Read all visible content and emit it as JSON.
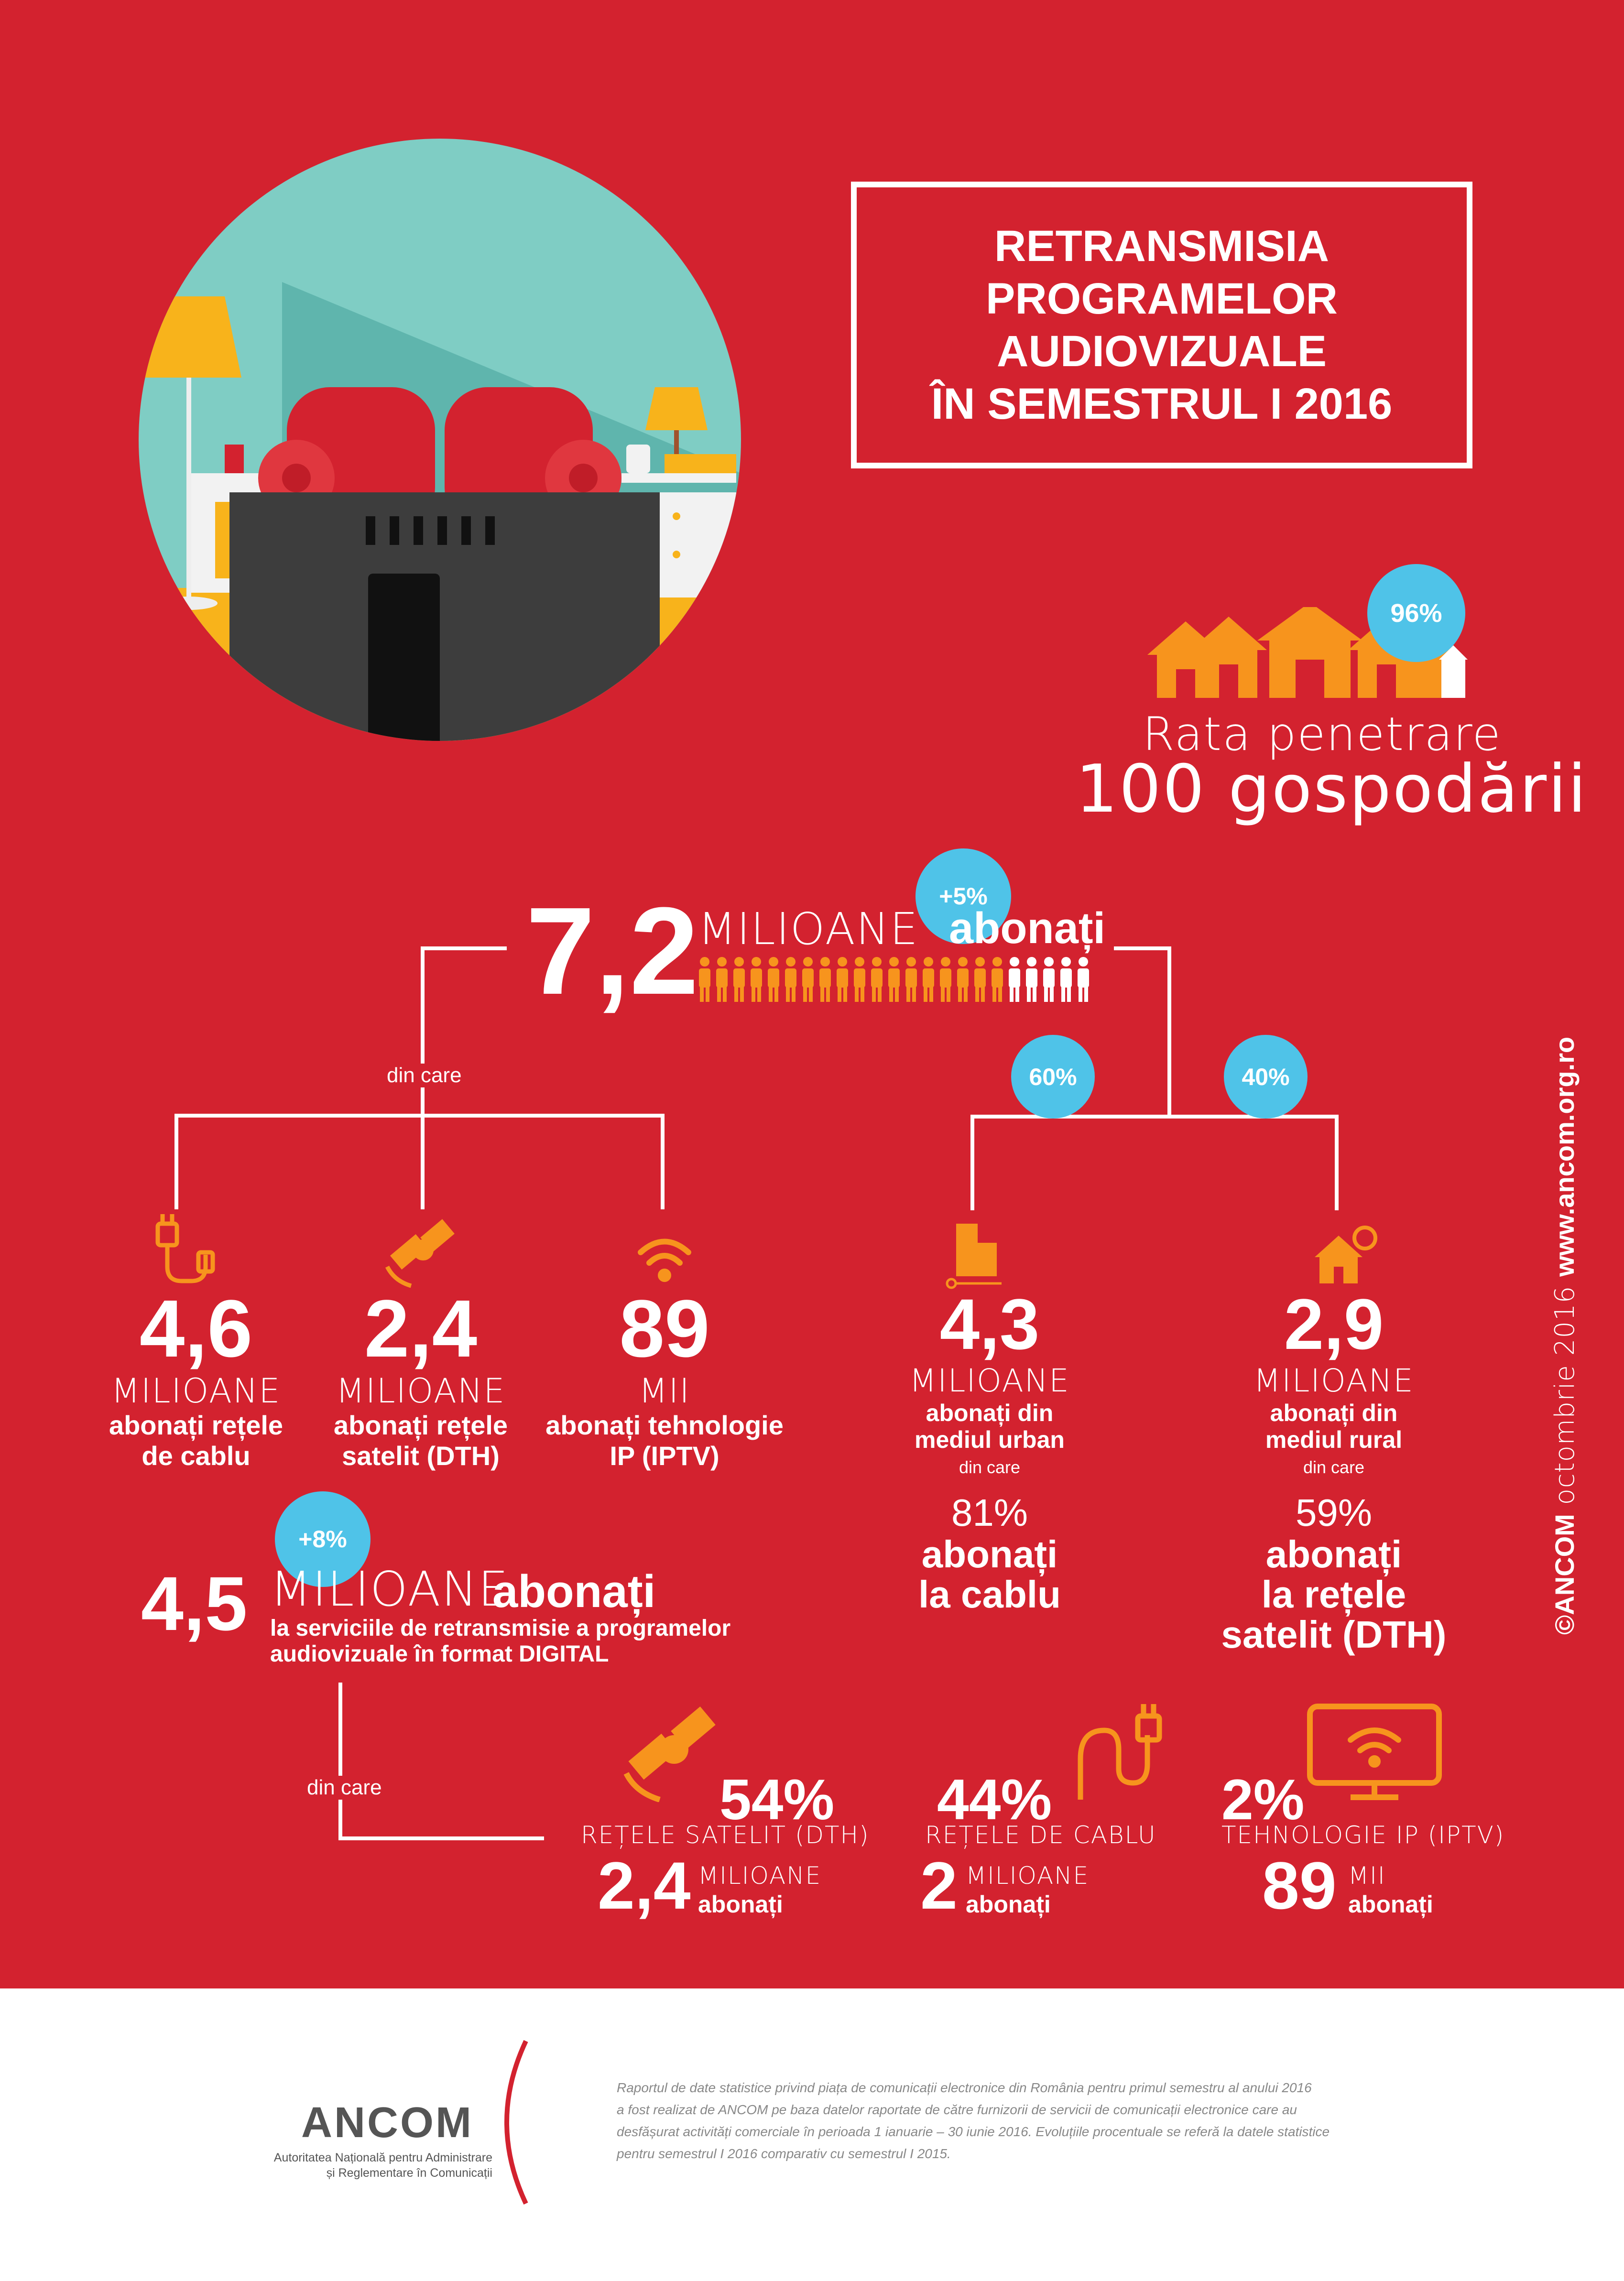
{
  "title": {
    "line1": "RETRANSMISIA",
    "line2": "PROGRAMELOR",
    "line3": "AUDIOVIZUALE",
    "line4": "ÎN SEMESTRUL I 2016"
  },
  "penetration": {
    "badge": "96%",
    "label": "Rata penetrare",
    "sub": "100 gospodării"
  },
  "total": {
    "value": "7,2",
    "unit": "MILIOANE",
    "label": "abonați",
    "badge": "+5%",
    "din_care": "din care"
  },
  "split_badges": {
    "urban": "60%",
    "rural": "40%"
  },
  "tech": [
    {
      "value": "4,6",
      "unit": "MILIOANE",
      "line1": "abonați rețele",
      "line2": "de cablu"
    },
    {
      "value": "2,4",
      "unit": "MILIOANE",
      "line1": "abonați rețele",
      "line2": "satelit (DTH)"
    },
    {
      "value": "89",
      "unit": "MII",
      "line1": "abonați tehnologie",
      "line2": "IP (IPTV)"
    }
  ],
  "area": [
    {
      "value": "4,3",
      "unit": "MILIOANE",
      "line1": "abonați din",
      "line2": "mediul urban",
      "din_care": "din care",
      "pct": "81%",
      "d1": "abonați",
      "d2": "la cablu",
      "d3": ""
    },
    {
      "value": "2,9",
      "unit": "MILIOANE",
      "line1": "abonați din",
      "line2": "mediul rural",
      "din_care": "din care",
      "pct": "59%",
      "d1": "abonați",
      "d2": "la rețele",
      "d3": "satelit (DTH)"
    }
  ],
  "digital": {
    "value": "4,5",
    "unit": "MILIOANE",
    "label": "abonați",
    "badge": "+8%",
    "desc1": "la serviciile de retransmisie a programelor",
    "desc2": "audiovizuale în format DIGITAL",
    "din_care": "din care"
  },
  "digital_split": [
    {
      "pct": "54%",
      "label": "REȚELE SATELIT (DTH)",
      "value": "2,4",
      "unit": "MILIOANE",
      "sub": "abonați"
    },
    {
      "pct": "44%",
      "label": "REȚELE DE CABLU",
      "value": "2",
      "unit": "MILIOANE",
      "sub": "abonați"
    },
    {
      "pct": "2%",
      "label": "TEHNOLOGIE IP (IPTV)",
      "value": "89",
      "unit": "MII",
      "sub": "abonați"
    }
  ],
  "side_text": {
    "prefix": "©ANCOM",
    "date": " octombrie 2016 ",
    "url": "www.ancom.org.ro"
  },
  "footer": {
    "logo": "ANCOM",
    "logo_sub1": "Autoritatea Națională pentru Administrare",
    "logo_sub2": "și Reglementare în Comunicații",
    "note1": "Raportul de date statistice privind piața de comunicații electronice din România pentru primul semestru al anului 2016",
    "note2": "a fost realizat de ANCOM pe baza datelor raportate de către furnizorii de servicii de comunicații electronice care au",
    "note3": "desfășurat activități comerciale în perioada 1 ianuarie – 30 iunie 2016. Evoluțiile procentuale se referă la datele statistice",
    "note4": "pentru semestrul I 2016 comparativ cu semestrul I 2015."
  },
  "colors": {
    "background": "#d3222f",
    "accent_orange": "#f7941d",
    "badge_blue": "#4fc3e8",
    "teal": "#7fcdc4"
  }
}
